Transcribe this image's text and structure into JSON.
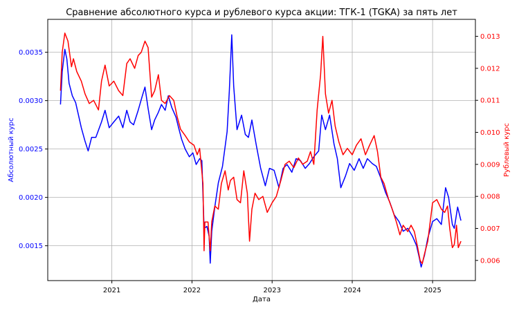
{
  "chart_data": {
    "type": "line",
    "title": "Сравнение абсолютного курса и рублевого курса акции: ТГК-1 (TGKA) за пять лет",
    "xlabel": "Дата",
    "x_ticks": [
      "2021",
      "2022",
      "2023",
      "2024",
      "2025"
    ],
    "x_range": [
      "2020-03-15",
      "2025-07-15"
    ],
    "grid": true,
    "left_axis": {
      "label": "Абсолютный курс",
      "color": "#0000ff",
      "ylim": [
        0.00114,
        0.00384
      ],
      "ticks": [
        "0.0015",
        "0.0020",
        "0.0025",
        "0.0030",
        "0.0035"
      ]
    },
    "right_axis": {
      "label": "Рублевый курс",
      "color": "#ff0000",
      "ylim": [
        0.00537,
        0.01353
      ],
      "ticks": [
        "0.006",
        "0.007",
        "0.008",
        "0.009",
        "0.010",
        "0.011",
        "0.012",
        "0.013"
      ]
    },
    "series": [
      {
        "axis": "left",
        "color": "#0000ff",
        "points": [
          [
            "2020-05-12",
            0.00296
          ],
          [
            "2020-05-20",
            0.0033
          ],
          [
            "2020-06-01",
            0.00353
          ],
          [
            "2020-06-10",
            0.00343
          ],
          [
            "2020-06-20",
            0.00318
          ],
          [
            "2020-07-05",
            0.00305
          ],
          [
            "2020-07-20",
            0.00298
          ],
          [
            "2020-08-01",
            0.00286
          ],
          [
            "2020-08-15",
            0.00272
          ],
          [
            "2020-09-01",
            0.00258
          ],
          [
            "2020-09-15",
            0.00248
          ],
          [
            "2020-10-01",
            0.00262
          ],
          [
            "2020-10-20",
            0.00262
          ],
          [
            "2020-11-15",
            0.00278
          ],
          [
            "2020-12-01",
            0.0029
          ],
          [
            "2020-12-20",
            0.00272
          ],
          [
            "2021-01-10",
            0.00278
          ],
          [
            "2021-02-01",
            0.00284
          ],
          [
            "2021-02-20",
            0.00272
          ],
          [
            "2021-03-10",
            0.0029
          ],
          [
            "2021-03-25",
            0.00278
          ],
          [
            "2021-04-10",
            0.00275
          ],
          [
            "2021-05-01",
            0.0029
          ],
          [
            "2021-05-20",
            0.00305
          ],
          [
            "2021-06-01",
            0.00314
          ],
          [
            "2021-06-15",
            0.00292
          ],
          [
            "2021-07-01",
            0.0027
          ],
          [
            "2021-07-15",
            0.0028
          ],
          [
            "2021-08-01",
            0.00288
          ],
          [
            "2021-08-15",
            0.00296
          ],
          [
            "2021-09-01",
            0.0029
          ],
          [
            "2021-09-15",
            0.00305
          ],
          [
            "2021-10-01",
            0.00293
          ],
          [
            "2021-10-20",
            0.00283
          ],
          [
            "2021-11-01",
            0.00272
          ],
          [
            "2021-11-15",
            0.0026
          ],
          [
            "2021-12-01",
            0.0025
          ],
          [
            "2021-12-20",
            0.00242
          ],
          [
            "2022-01-05",
            0.00246
          ],
          [
            "2022-01-20",
            0.00234
          ],
          [
            "2022-02-05",
            0.0024
          ],
          [
            "2022-02-15",
            0.00238
          ],
          [
            "2022-02-25",
            0.00168
          ],
          [
            "2022-03-10",
            0.0017
          ],
          [
            "2022-03-20",
            0.0016
          ],
          [
            "2022-03-25",
            0.00132
          ],
          [
            "2022-04-01",
            0.00165
          ],
          [
            "2022-04-15",
            0.0019
          ],
          [
            "2022-05-01",
            0.00215
          ],
          [
            "2022-05-20",
            0.00232
          ],
          [
            "2022-06-10",
            0.00268
          ],
          [
            "2022-06-20",
            0.0031
          ],
          [
            "2022-07-01",
            0.00368
          ],
          [
            "2022-07-10",
            0.00315
          ],
          [
            "2022-07-25",
            0.0027
          ],
          [
            "2022-08-15",
            0.00285
          ],
          [
            "2022-09-01",
            0.00265
          ],
          [
            "2022-09-15",
            0.00262
          ],
          [
            "2022-10-01",
            0.0028
          ],
          [
            "2022-10-20",
            0.00255
          ],
          [
            "2022-11-10",
            0.0023
          ],
          [
            "2022-12-01",
            0.00212
          ],
          [
            "2022-12-20",
            0.0023
          ],
          [
            "2023-01-10",
            0.00228
          ],
          [
            "2023-02-01",
            0.0021
          ],
          [
            "2023-02-20",
            0.0023
          ],
          [
            "2023-03-10",
            0.00234
          ],
          [
            "2023-04-01",
            0.00226
          ],
          [
            "2023-04-20",
            0.0024
          ],
          [
            "2023-05-10",
            0.00238
          ],
          [
            "2023-06-01",
            0.0023
          ],
          [
            "2023-06-20",
            0.00235
          ],
          [
            "2023-07-10",
            0.00242
          ],
          [
            "2023-08-01",
            0.00248
          ],
          [
            "2023-08-15",
            0.00285
          ],
          [
            "2023-09-01",
            0.0027
          ],
          [
            "2023-09-20",
            0.00285
          ],
          [
            "2023-10-10",
            0.00255
          ],
          [
            "2023-10-25",
            0.0024
          ],
          [
            "2023-11-10",
            0.0021
          ],
          [
            "2023-12-01",
            0.00222
          ],
          [
            "2023-12-20",
            0.00235
          ],
          [
            "2024-01-10",
            0.00228
          ],
          [
            "2024-02-01",
            0.0024
          ],
          [
            "2024-02-20",
            0.0023
          ],
          [
            "2024-03-10",
            0.0024
          ],
          [
            "2024-04-01",
            0.00235
          ],
          [
            "2024-04-20",
            0.00232
          ],
          [
            "2024-05-10",
            0.0022
          ],
          [
            "2024-06-01",
            0.00205
          ],
          [
            "2024-06-20",
            0.00195
          ],
          [
            "2024-07-10",
            0.00182
          ],
          [
            "2024-08-01",
            0.00175
          ],
          [
            "2024-08-20",
            0.00165
          ],
          [
            "2024-09-10",
            0.00168
          ],
          [
            "2024-10-01",
            0.0016
          ],
          [
            "2024-10-20",
            0.0015
          ],
          [
            "2024-11-01",
            0.00138
          ],
          [
            "2024-11-10",
            0.00128
          ],
          [
            "2024-11-25",
            0.0014
          ],
          [
            "2024-12-10",
            0.00158
          ],
          [
            "2025-01-01",
            0.00175
          ],
          [
            "2025-01-20",
            0.00178
          ],
          [
            "2025-02-10",
            0.00172
          ],
          [
            "2025-03-01",
            0.0021
          ],
          [
            "2025-03-15",
            0.002
          ],
          [
            "2025-04-01",
            0.00172
          ],
          [
            "2025-04-10",
            0.00168
          ],
          [
            "2025-04-25",
            0.0019
          ],
          [
            "2025-05-10",
            0.00176
          ]
        ]
      },
      {
        "axis": "right",
        "color": "#ff0000",
        "points": [
          [
            "2020-05-12",
            0.0113
          ],
          [
            "2020-05-20",
            0.0125
          ],
          [
            "2020-06-01",
            0.0131
          ],
          [
            "2020-06-15",
            0.01285
          ],
          [
            "2020-07-01",
            0.01205
          ],
          [
            "2020-07-10",
            0.0123
          ],
          [
            "2020-07-25",
            0.0119
          ],
          [
            "2020-08-15",
            0.0116
          ],
          [
            "2020-09-01",
            0.0112
          ],
          [
            "2020-09-20",
            0.0109
          ],
          [
            "2020-10-10",
            0.011
          ],
          [
            "2020-11-01",
            0.0107
          ],
          [
            "2020-11-15",
            0.0116
          ],
          [
            "2020-12-01",
            0.0121
          ],
          [
            "2020-12-20",
            0.01145
          ],
          [
            "2021-01-10",
            0.0116
          ],
          [
            "2021-02-01",
            0.0113
          ],
          [
            "2021-02-20",
            0.01115
          ],
          [
            "2021-03-10",
            0.01215
          ],
          [
            "2021-03-25",
            0.0123
          ],
          [
            "2021-04-15",
            0.012
          ],
          [
            "2021-05-01",
            0.0124
          ],
          [
            "2021-05-15",
            0.0125
          ],
          [
            "2021-06-01",
            0.01285
          ],
          [
            "2021-06-15",
            0.01265
          ],
          [
            "2021-07-01",
            0.0111
          ],
          [
            "2021-07-15",
            0.0113
          ],
          [
            "2021-08-01",
            0.0118
          ],
          [
            "2021-08-15",
            0.011
          ],
          [
            "2021-09-01",
            0.0109
          ],
          [
            "2021-09-20",
            0.01115
          ],
          [
            "2021-10-10",
            0.011
          ],
          [
            "2021-10-25",
            0.0105
          ],
          [
            "2021-11-10",
            0.0101
          ],
          [
            "2021-12-01",
            0.0099
          ],
          [
            "2021-12-20",
            0.0097
          ],
          [
            "2022-01-10",
            0.0096
          ],
          [
            "2022-01-25",
            0.0093
          ],
          [
            "2022-02-05",
            0.0095
          ],
          [
            "2022-02-20",
            0.0084
          ],
          [
            "2022-02-25",
            0.0063
          ],
          [
            "2022-03-01",
            0.0072
          ],
          [
            "2022-03-15",
            0.0072
          ],
          [
            "2022-03-25",
            0.0063
          ],
          [
            "2022-04-01",
            0.0072
          ],
          [
            "2022-04-15",
            0.0077
          ],
          [
            "2022-05-01",
            0.0076
          ],
          [
            "2022-05-15",
            0.0084
          ],
          [
            "2022-06-01",
            0.0088
          ],
          [
            "2022-06-15",
            0.0082
          ],
          [
            "2022-06-25",
            0.0085
          ],
          [
            "2022-07-10",
            0.0086
          ],
          [
            "2022-07-25",
            0.0079
          ],
          [
            "2022-08-10",
            0.0078
          ],
          [
            "2022-08-25",
            0.0088
          ],
          [
            "2022-09-10",
            0.0081
          ],
          [
            "2022-09-20",
            0.0066
          ],
          [
            "2022-10-01",
            0.0076
          ],
          [
            "2022-10-15",
            0.0081
          ],
          [
            "2022-11-01",
            0.0079
          ],
          [
            "2022-11-20",
            0.008
          ],
          [
            "2022-12-10",
            0.0075
          ],
          [
            "2023-01-01",
            0.0078
          ],
          [
            "2023-01-20",
            0.008
          ],
          [
            "2023-02-10",
            0.0085
          ],
          [
            "2023-03-01",
            0.009
          ],
          [
            "2023-03-20",
            0.0091
          ],
          [
            "2023-04-10",
            0.0089
          ],
          [
            "2023-05-01",
            0.0092
          ],
          [
            "2023-05-20",
            0.009
          ],
          [
            "2023-06-10",
            0.0091
          ],
          [
            "2023-06-25",
            0.0094
          ],
          [
            "2023-07-10",
            0.009
          ],
          [
            "2023-07-25",
            0.0107
          ],
          [
            "2023-08-10",
            0.0118
          ],
          [
            "2023-08-20",
            0.013
          ],
          [
            "2023-09-01",
            0.0112
          ],
          [
            "2023-09-15",
            0.0106
          ],
          [
            "2023-10-01",
            0.011
          ],
          [
            "2023-10-15",
            0.0102
          ],
          [
            "2023-11-01",
            0.0097
          ],
          [
            "2023-11-20",
            0.0093
          ],
          [
            "2023-12-10",
            0.0095
          ],
          [
            "2024-01-01",
            0.0093
          ],
          [
            "2024-01-20",
            0.0096
          ],
          [
            "2024-02-10",
            0.0098
          ],
          [
            "2024-03-01",
            0.0093
          ],
          [
            "2024-03-20",
            0.0096
          ],
          [
            "2024-04-10",
            0.0099
          ],
          [
            "2024-04-25",
            0.0094
          ],
          [
            "2024-05-10",
            0.0086
          ],
          [
            "2024-05-25",
            0.0084
          ],
          [
            "2024-06-15",
            0.0079
          ],
          [
            "2024-07-01",
            0.0076
          ],
          [
            "2024-07-20",
            0.0072
          ],
          [
            "2024-08-05",
            0.0068
          ],
          [
            "2024-08-20",
            0.0071
          ],
          [
            "2024-09-10",
            0.0069
          ],
          [
            "2024-09-25",
            0.0071
          ],
          [
            "2024-10-10",
            0.0069
          ],
          [
            "2024-10-25",
            0.0064
          ],
          [
            "2024-11-05",
            0.006
          ],
          [
            "2024-11-15",
            0.0059
          ],
          [
            "2024-11-25",
            0.0062
          ],
          [
            "2024-12-10",
            0.0066
          ],
          [
            "2025-01-01",
            0.0078
          ],
          [
            "2025-01-20",
            0.0079
          ],
          [
            "2025-02-10",
            0.0076
          ],
          [
            "2025-02-25",
            0.0075
          ],
          [
            "2025-03-10",
            0.0077
          ],
          [
            "2025-03-20",
            0.007
          ],
          [
            "2025-04-01",
            0.0064
          ],
          [
            "2025-04-10",
            0.0065
          ],
          [
            "2025-04-20",
            0.0071
          ],
          [
            "2025-04-28",
            0.0064
          ],
          [
            "2025-05-10",
            0.0066
          ]
        ]
      }
    ]
  }
}
